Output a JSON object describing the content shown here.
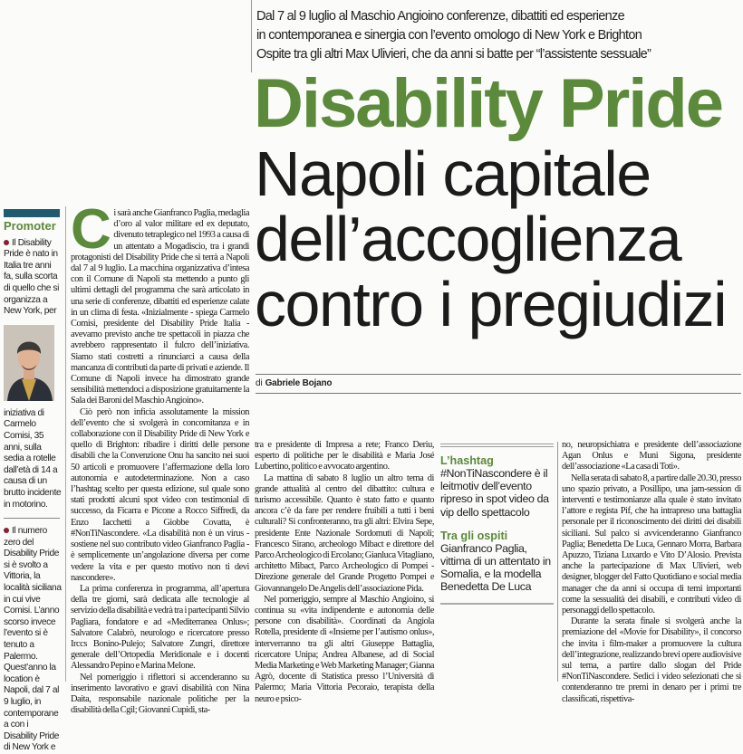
{
  "deck": [
    "Dal 7 al 9 luglio al Maschio Angioino conferenze, dibattiti ed esperienze",
    "in contemporanea e sinergia con l’evento omologo di New York e Brighton",
    "Ospite tra gli altri Max Ulivieri, che da anni si batte per “l’assistente sessuale”"
  ],
  "kicker": "Disability Pride",
  "title": [
    "Napoli capitale",
    "dell’accoglienza",
    "contro i pregiudizi"
  ],
  "byline": {
    "prefix": "di",
    "author": "Gabriele Bojano"
  },
  "colors": {
    "accent_green": "#5a8a3a",
    "bar_blue": "#1f5a6e",
    "bullet": "#8a1f2e"
  },
  "sidebar": {
    "heading": "Promoter",
    "items": [
      "Il Disability Pride è nato in Italia tre anni fa, sulla scorta di quello che si organizza a New York, per",
      "iniziativa di Carmelo Comisi, 35 anni, sulla sedia a rotelle dall’età di 14 a causa di un brutto incidente in motorino.",
      "Il numero zero del Disability Pride si è svolto a Vittoria, la località siciliana in cui vive Comisi. L’anno scorso invece l’evento si è tenuto a Palermo. Quest’anno la location è Napoli, dal 7 al 9 luglio, in contemporane a con i Disability Pride di New York e"
    ]
  },
  "article": {
    "dropcap": "C",
    "col1": [
      "i sarà anche Gianfranco Paglia, medaglia d’oro al valor militare ed ex deputato, divenuto tetraplegico nel 1993 a causa di un attentato a Mogadiscio, tra i grandi protagonisti del Disability Pride che si terrà a Napoli dal 7 al 9 luglio. La macchina organizzativa d’intesa con il Comune di Napoli sta mettendo a punto gli ultimi dettagli del programma che sarà articolato in una serie di conferenze, dibattiti ed esperienze calate in un clima di festa. «Inizialmente - spiega Carmelo Comisi, presidente del Disability Pride Italia - avevamo previsto anche tre spettacoli in piazza che avrebbero rappresentato il fulcro dell’iniziativa. Siamo stati costretti a rinunciarci a causa della mancanza di contributi da parte di privati e aziende. Il Comune di Napoli invece ha dimostrato grande sensibilità mettendoci a disposizione gratuitamente la Sala dei Baroni del Maschio Angioino».",
      "Ciò però non inficia assolutamente la mission dell’evento che si svolgerà in concomitanza e in collaborazione con il Disability Pride di New York e quello di Brighton: ribadire i diritti delle persone disabili che la Convenzione Onu ha sancito nei suoi 50 articoli e promuovere l’affermazione della loro autonomia e autodeterminazione. Non a caso l’hashtag scelto per questa edizione, sul quale sono stati prodotti alcuni spot video con testimonial di successo, da Ficarra e Picone a Rocco Siffredi, da Enzo Iacchetti a Giobbe Covatta, è #NonTiNascondere. «La disabilità non è un virus - sostiene nel suo contributo video Gianfranco Paglia - è semplicemente un’angolazione diversa per come vedere la vita e per questo motivo non ti devi nascondere».",
      "La prima conferenza in programma, all’apertura della tre giorni, sarà dedicata alle tecnologie al servizio della disabilità e vedrà tra i partecipanti Silvio Pagliara, fondatore e ad «Mediterranea Onlus»; Salvatore Calabrò, neurologo e ricercatore presso Irccs Bonino-Pulejo; Salvatore Zungri, direttore generale dell’Ortopedia Meridionale e i docenti Alessandro Pepino e Marina Melone.",
      "Nel pomeriggio i riflettori si accenderanno su inserimento lavorativo e gravi disabilità con Nina Daita, responsabile nazionale politiche per la disabilità della Cgil; Giovanni Cupidi, sta-"
    ],
    "col2": [
      "tra e presidente di Impresa a rete; Franco Deriu, esperto di politiche per le disabilità e Maria José Lubertino, politico e avvocato argentino.",
      "La mattina di sabato 8 luglio un altro tema di grande attualità al centro del dibattito: cultura e turismo accessibile. Quanto è stato fatto e quanto ancora c’è da fare per rendere fruibili a tutti i beni culturali? Si confronteranno, tra gli altri: Elvira Sepe, presidente Ente Nazionale Sordomuti di Napoli; Francesco Sirano, archeologo Mibact e direttore del Parco Archeologico di Ercolano; Gianluca Vitagliano, architetto Mibact, Parco Archeologico di Pompei - Direzione generale del Grande Progetto Pompei e Giovannangelo De Angelis dell’associazione Pida.",
      "Nel pomeriggio, sempre al Maschio Angioino, si continua su «vita indipendente e autonomia delle persone con disabilità». Coordinati da Angiola Rotella, presidente di «Insieme per l’autismo onlus», interverranno tra gli altri Giuseppe Battaglia, ricercatore Unipa; Andrea Albanese, ad di Social Media Marketing e Web Marketing Manager; Gianna Agrò, docente di Statistica presso l’Università di Palermo; Maria Vittoria Pecoraio, terapista della neuro e psico-"
    ],
    "col3": [
      "no, neuropsichiatra e presidente dell’associazione Agan Onlus e Muni Sigona, presidente dell’associazione «La casa di Toti».",
      "Nella serata di sabato 8, a partire dalle 20.30, presso uno spazio privato, a Posillipo, una jam-session di interventi e testimonianze alla quale è stato invitato l’attore e regista Pif, che ha intrapreso una battaglia personale per il riconoscimento dei diritti dei disabili siciliani. Sul palco si avvicenderanno Gianfranco Paglia; Benedetta De Luca, Gennaro Morra, Barbara Apuzzo, Tiziana Luxardo e Vito D’Alosio. Prevista anche la partecipazione di Max Ulivieri, web designer, blogger del Fatto Quotidiano e social media manager che da anni si occupa di temi importanti come la sessualità dei disabili, e contributi video di personaggi dello spettacolo.",
      "Durante la serata finale si svolgerà anche la premiazione del «Movie for Disability», il concorso che invita i film-maker a promuovere la cultura dell’integrazione, realizzando brevi opere audiovisive sul tema, a partire dallo slogan del Pride #NonTiNascondere. Sedici i video selezionati che si contenderanno tre premi in denaro per i primi tre classificati, rispettiva-"
    ]
  },
  "factbox": [
    {
      "heading": "L’hashtag",
      "text": "#NonTiNascondere è il leitmotiv dell’evento ripreso in spot video da vip dello spettacolo"
    },
    {
      "heading": "Tra gli ospiti",
      "text": "Gianfranco Paglia, vittima di un attentato in Somalia, e la modella Benedetta De Luca"
    }
  ]
}
